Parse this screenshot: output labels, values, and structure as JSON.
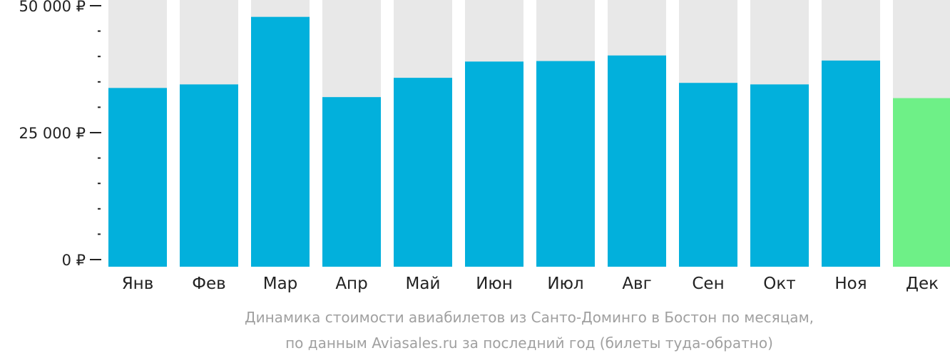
{
  "chart_data": {
    "type": "bar",
    "categories": [
      "Янв",
      "Фев",
      "Мар",
      "Апр",
      "Май",
      "Июн",
      "Июл",
      "Авг",
      "Сен",
      "Окт",
      "Ноя",
      "Дек"
    ],
    "values": [
      33800,
      34500,
      47800,
      32000,
      35800,
      39000,
      39100,
      40200,
      34800,
      34500,
      39200,
      31800
    ],
    "ylim": [
      0,
      50000
    ],
    "major_ticks": [
      {
        "value": 0,
        "label": "0 ₽"
      },
      {
        "value": 25000,
        "label": "25 000 ₽"
      },
      {
        "value": 50000,
        "label": "50 000 ₽"
      }
    ],
    "minor_tick_step": 5000,
    "highlight_index": 11,
    "grid": false,
    "legend": "none",
    "caption_lines": [
      "Динамика стоимости авиабилетов из Санто-Доминго в Бостон по месяцам,",
      "по данным Aviasales.ru за последний год (билеты туда-обратно)"
    ],
    "colors": {
      "bar": "#02b0dc",
      "highlight": "#6ef087",
      "background_bar": "#e8e8e8",
      "axis": "#222222",
      "tick_text": "#222222",
      "caption_text": "#a0a0a0"
    }
  }
}
